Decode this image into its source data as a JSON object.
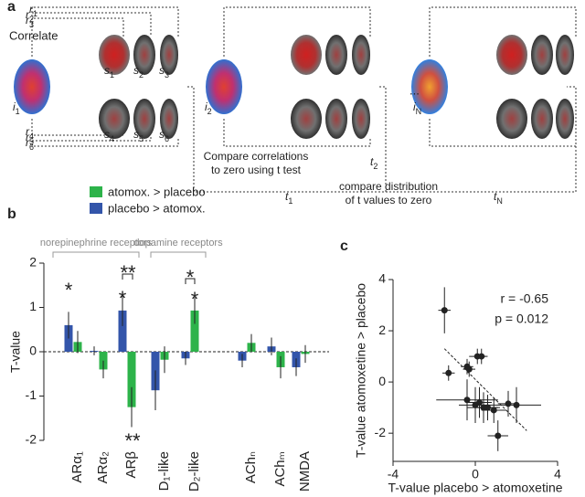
{
  "diagram": {
    "label": "a",
    "correlate": "Correlate",
    "images": [
      {
        "main": "i",
        "sub": "1"
      },
      {
        "main": "i",
        "sub": "2"
      },
      {
        "main": "i",
        "sub": "N"
      }
    ],
    "ellipsis": "...",
    "subjects": [
      {
        "main": "s",
        "sub": "1"
      },
      {
        "main": "s",
        "sub": "2"
      },
      {
        "main": "s",
        "sub": "3"
      },
      {
        "main": "s",
        "sub": "4"
      },
      {
        "main": "s",
        "sub": "5"
      },
      {
        "main": "s",
        "sub": "6"
      }
    ],
    "correlations": [
      {
        "main": "r",
        "sub": "1"
      },
      {
        "main": "r",
        "sub": "2"
      },
      {
        "main": "r",
        "sub": "3"
      },
      {
        "main": "r",
        "sub": "4"
      },
      {
        "main": "r",
        "sub": "5"
      },
      {
        "main": "r",
        "sub": "6"
      }
    ],
    "t_values": [
      {
        "main": "t",
        "sub": "1"
      },
      {
        "main": "t",
        "sub": "2"
      },
      {
        "main": "t",
        "sub": "N"
      }
    ],
    "compare_correlations": [
      "Compare correlations",
      "to zero using t test"
    ],
    "compare_distribution": [
      "compare distribution",
      "of t values to zero"
    ]
  },
  "chart_data": [
    {
      "type": "bar",
      "label": "b",
      "ylabel": "T-value",
      "categories": [
        "ARα₁",
        "ARα₂",
        "ARβ",
        "D₁-like",
        "D₂-like",
        "AChₙ",
        "AChₘ",
        "NMDA"
      ],
      "series": [
        {
          "name": "atomox. > placebo",
          "color": "#2db34a",
          "values": [
            0.22,
            -0.4,
            -1.25,
            -0.18,
            0.93,
            0.2,
            -0.35,
            -0.05
          ],
          "errors": [
            0.25,
            0.2,
            0.45,
            0.3,
            0.3,
            0.2,
            0.25,
            0.2
          ]
        },
        {
          "name": "placebo > atomox.",
          "color": "#3355aa",
          "values": [
            0.6,
            0.02,
            0.93,
            -0.87,
            -0.15,
            -0.2,
            0.12,
            -0.35
          ],
          "errors": [
            0.3,
            0.1,
            0.35,
            0.45,
            0.15,
            0.15,
            0.2,
            0.2
          ]
        }
      ],
      "ylim": [
        -2,
        2
      ],
      "yticks": [
        -2,
        -1,
        0,
        1,
        2
      ],
      "groups": [
        "norepinephrine receptors",
        "dopamine receptors"
      ],
      "annotations": [
        "*",
        "*",
        "**",
        "**",
        "*",
        "*"
      ]
    },
    {
      "type": "scatter",
      "label": "c",
      "xlabel": "T-value placebo > atomoxetine",
      "ylabel": "T-value atomoxetine > placebo",
      "x": [
        -1.5,
        -1.3,
        -0.4,
        -0.3,
        0.1,
        0.3,
        -0.4,
        0.0,
        0.2,
        0.4,
        0.9,
        1.1,
        1.6,
        2.0,
        0.6
      ],
      "y": [
        2.8,
        0.35,
        0.6,
        0.5,
        1.0,
        1.0,
        -0.7,
        -0.9,
        -0.8,
        -1.0,
        -1.1,
        -2.1,
        -0.85,
        -0.9,
        -1.0
      ],
      "xerr": [
        0.3,
        0.3,
        0.3,
        0.3,
        0.4,
        0.3,
        1.5,
        0.8,
        0.6,
        0.8,
        0.6,
        0.5,
        0.5,
        1.2,
        0.5
      ],
      "yerr": [
        0.9,
        0.3,
        0.3,
        0.3,
        0.3,
        0.3,
        0.8,
        0.7,
        0.6,
        0.6,
        0.5,
        0.6,
        0.5,
        0.7,
        0.5
      ],
      "fit": {
        "x": [
          -1.5,
          2.5
        ],
        "y": [
          1.3,
          -1.9
        ]
      },
      "color": "#222222",
      "xlim": [
        -4,
        4
      ],
      "ylim": [
        -3.1,
        4
      ],
      "xticks": [
        -4,
        0,
        4
      ],
      "yticks": [
        -2,
        0,
        2,
        4
      ],
      "annotations": [
        "r = -0.65",
        "p = 0.012"
      ]
    }
  ]
}
